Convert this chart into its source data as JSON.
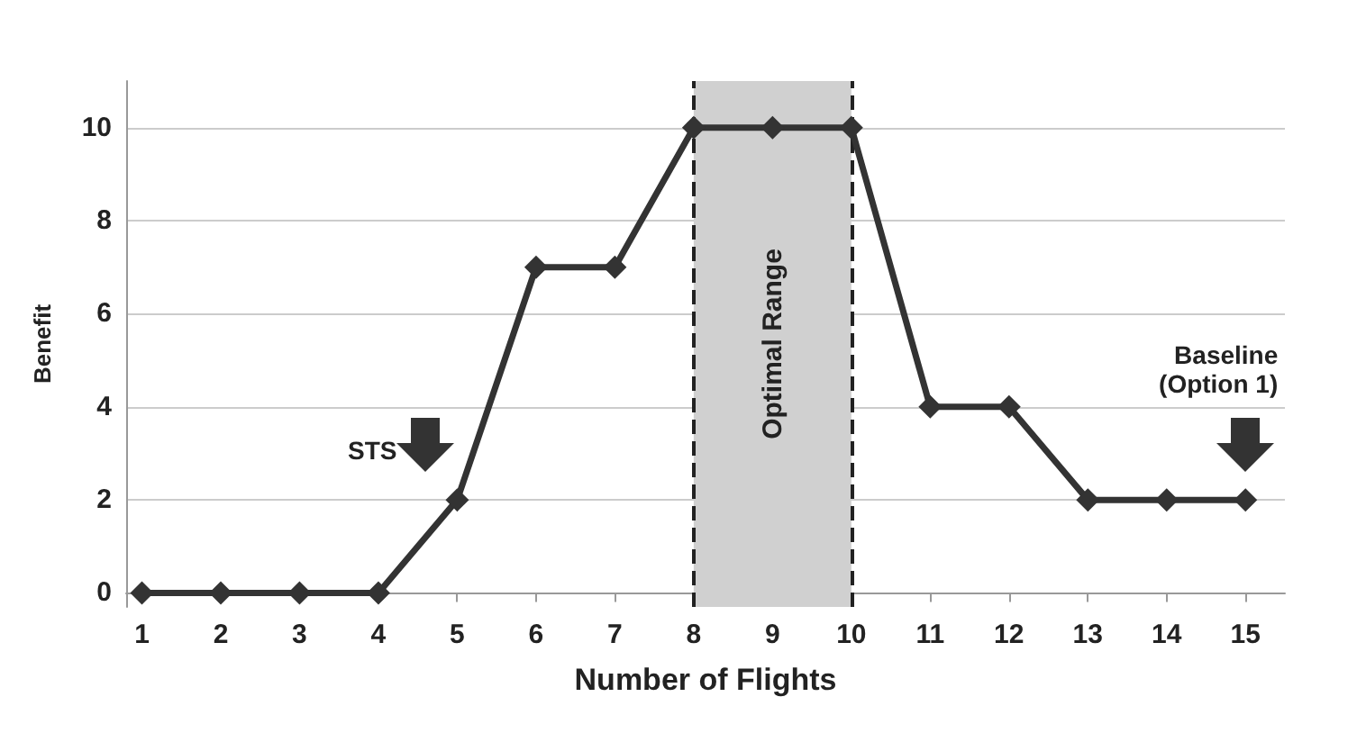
{
  "chart_data": {
    "type": "line",
    "xlabel": "Number of Flights",
    "ylabel": "Benefit",
    "x": [
      1,
      2,
      3,
      4,
      5,
      6,
      7,
      8,
      9,
      10,
      11,
      12,
      13,
      14,
      15
    ],
    "series": [
      {
        "color": "#333333",
        "values": [
          0,
          0,
          0,
          0,
          2,
          7,
          7,
          10,
          10,
          10,
          4,
          4,
          2,
          2,
          2
        ]
      }
    ],
    "xlim": [
      0.8,
      15.5
    ],
    "xticks": [
      1,
      2,
      3,
      4,
      5,
      6,
      7,
      8,
      9,
      10,
      11,
      12,
      13,
      14,
      15
    ],
    "ylim": [
      -0.3,
      11
    ],
    "yticks": [
      0,
      2,
      4,
      6,
      8,
      10
    ],
    "bands": [
      {
        "axis": "x",
        "from": 8,
        "to": 10,
        "label": "Optimal Range",
        "color": "#d0d0d0"
      }
    ],
    "ref_lines": [
      {
        "axis": "x",
        "value": 8,
        "line_style": "dashed"
      },
      {
        "axis": "x",
        "value": 10,
        "line_style": "dashed"
      }
    ],
    "annotations": [
      {
        "text": "STS",
        "x": 4.6,
        "y": 3.2
      },
      {
        "text": "Baseline\n(Option 1)",
        "x": 15,
        "y": 3.2
      }
    ],
    "grid": "y",
    "marker": "diamond",
    "line_style": "solid"
  }
}
